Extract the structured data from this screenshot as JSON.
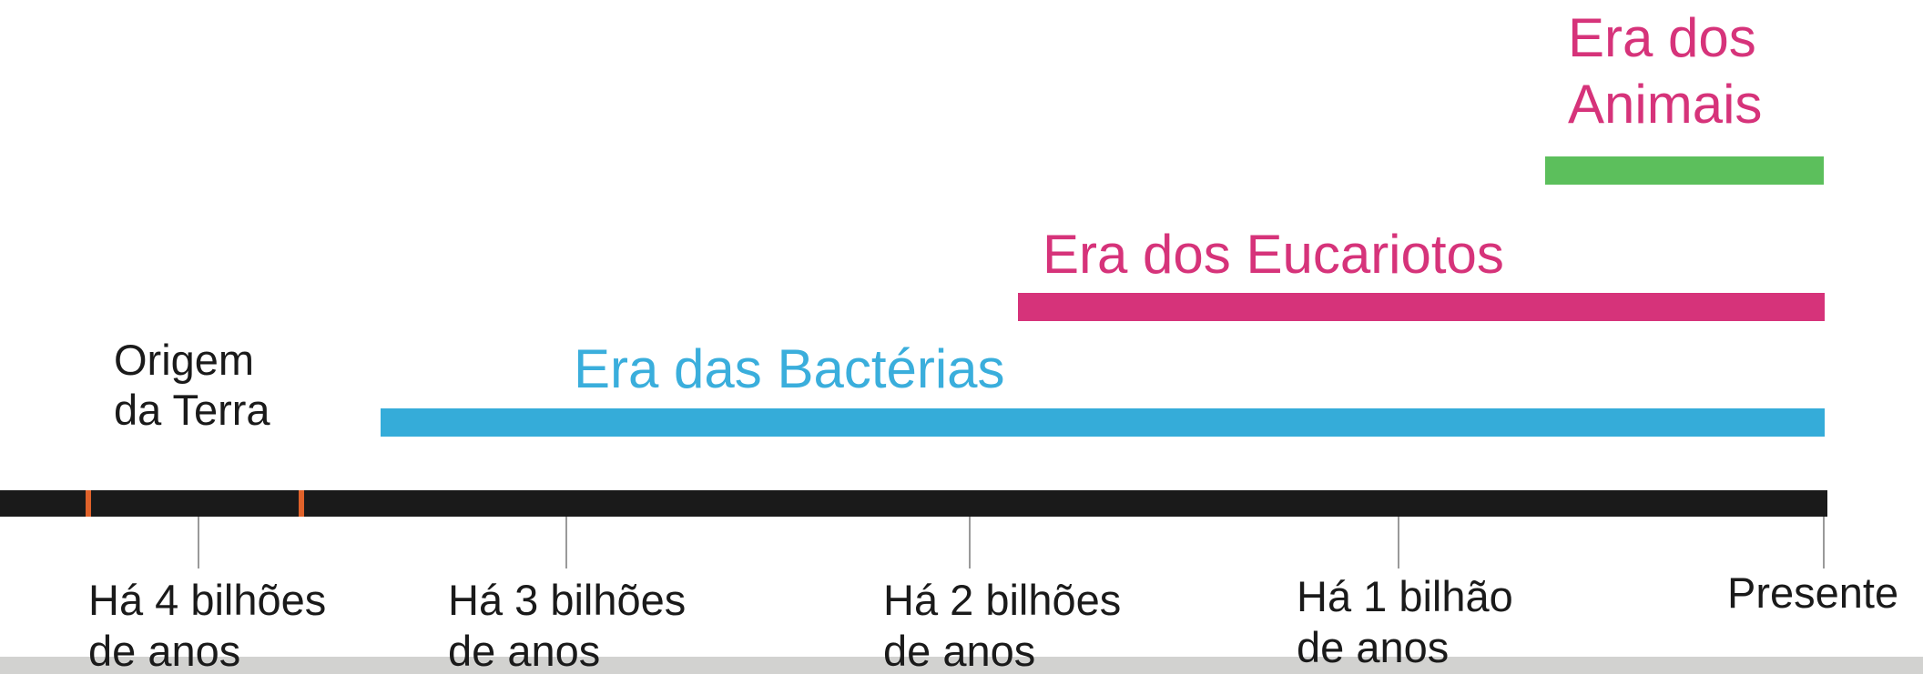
{
  "timeline": {
    "origin_label": [
      "Origem",
      "da Terra"
    ],
    "eras": [
      {
        "label": [
          "Era das Bactérias"
        ]
      },
      {
        "label": [
          "Era dos Eucariotos"
        ]
      },
      {
        "label": [
          "Era dos",
          "Animais"
        ]
      }
    ],
    "ticks": [
      [
        "Há 4 bilhões",
        "de anos"
      ],
      [
        "Há 3 bilhões",
        "de anos"
      ],
      [
        "Há 2 bilhões",
        "de anos"
      ],
      [
        "Há 1 bilhão",
        "de anos"
      ],
      [
        "Presente"
      ]
    ]
  }
}
